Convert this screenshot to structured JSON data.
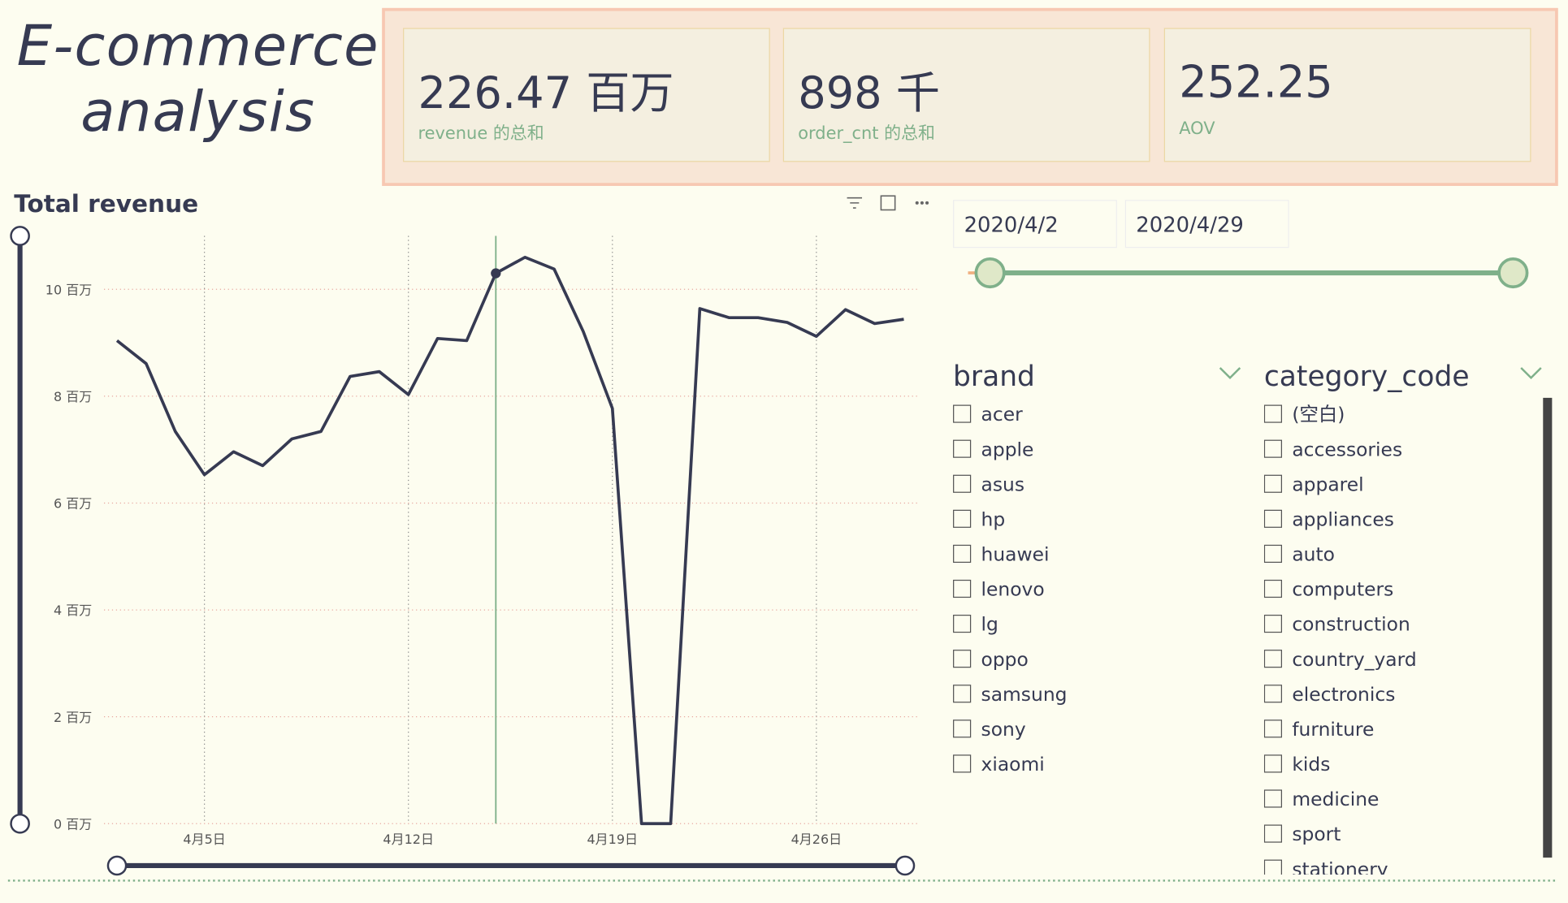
{
  "header": {
    "title": "E-commerce analysis"
  },
  "kpis": [
    {
      "value": "226.47 百万",
      "label": "revenue 的总和"
    },
    {
      "value": "898 千",
      "label": "order_cnt 的总和"
    },
    {
      "value": "252.25",
      "label": "AOV"
    }
  ],
  "date_range": {
    "start": "2020/4/2",
    "end": "2020/4/29"
  },
  "filters": [
    {
      "title": "brand",
      "items": [
        "acer",
        "apple",
        "asus",
        "hp",
        "huawei",
        "lenovo",
        "lg",
        "oppo",
        "samsung",
        "sony",
        "xiaomi"
      ]
    },
    {
      "title": "category_code",
      "items": [
        "(空白)",
        "accessories",
        "apparel",
        "appliances",
        "auto",
        "computers",
        "construction",
        "country_yard",
        "electronics",
        "furniture",
        "kids",
        "medicine",
        "sport",
        "stationery"
      ]
    }
  ],
  "chart_data": {
    "type": "line",
    "title": "Total revenue",
    "categories": [
      null,
      null,
      null,
      "4月5日",
      null,
      null,
      null,
      null,
      null,
      null,
      "4月12日",
      null,
      null,
      null,
      null,
      null,
      null,
      "4月19日",
      null,
      null,
      null,
      null,
      null,
      null,
      "4月26日",
      null,
      null,
      null
    ],
    "values": [
      9.04,
      8.61,
      7.34,
      6.53,
      6.96,
      6.7,
      7.2,
      7.34,
      8.37,
      8.46,
      8.03,
      9.08,
      9.04,
      10.3,
      10.6,
      10.38,
      9.21,
      7.77,
      0,
      0,
      9.64,
      9.47,
      9.47,
      9.38,
      9.12,
      9.62,
      9.36,
      9.44
    ],
    "color": "#363a52",
    "ylim": [
      0,
      11
    ],
    "yticks": [
      {
        "value": 0,
        "label": "0 百万"
      },
      {
        "value": 2,
        "label": "2 百万"
      },
      {
        "value": 4,
        "label": "4 百万"
      },
      {
        "value": 6,
        "label": "6 百万"
      },
      {
        "value": 8,
        "label": "8 百万"
      },
      {
        "value": 10,
        "label": "10 百万"
      }
    ],
    "grid": true
  }
}
